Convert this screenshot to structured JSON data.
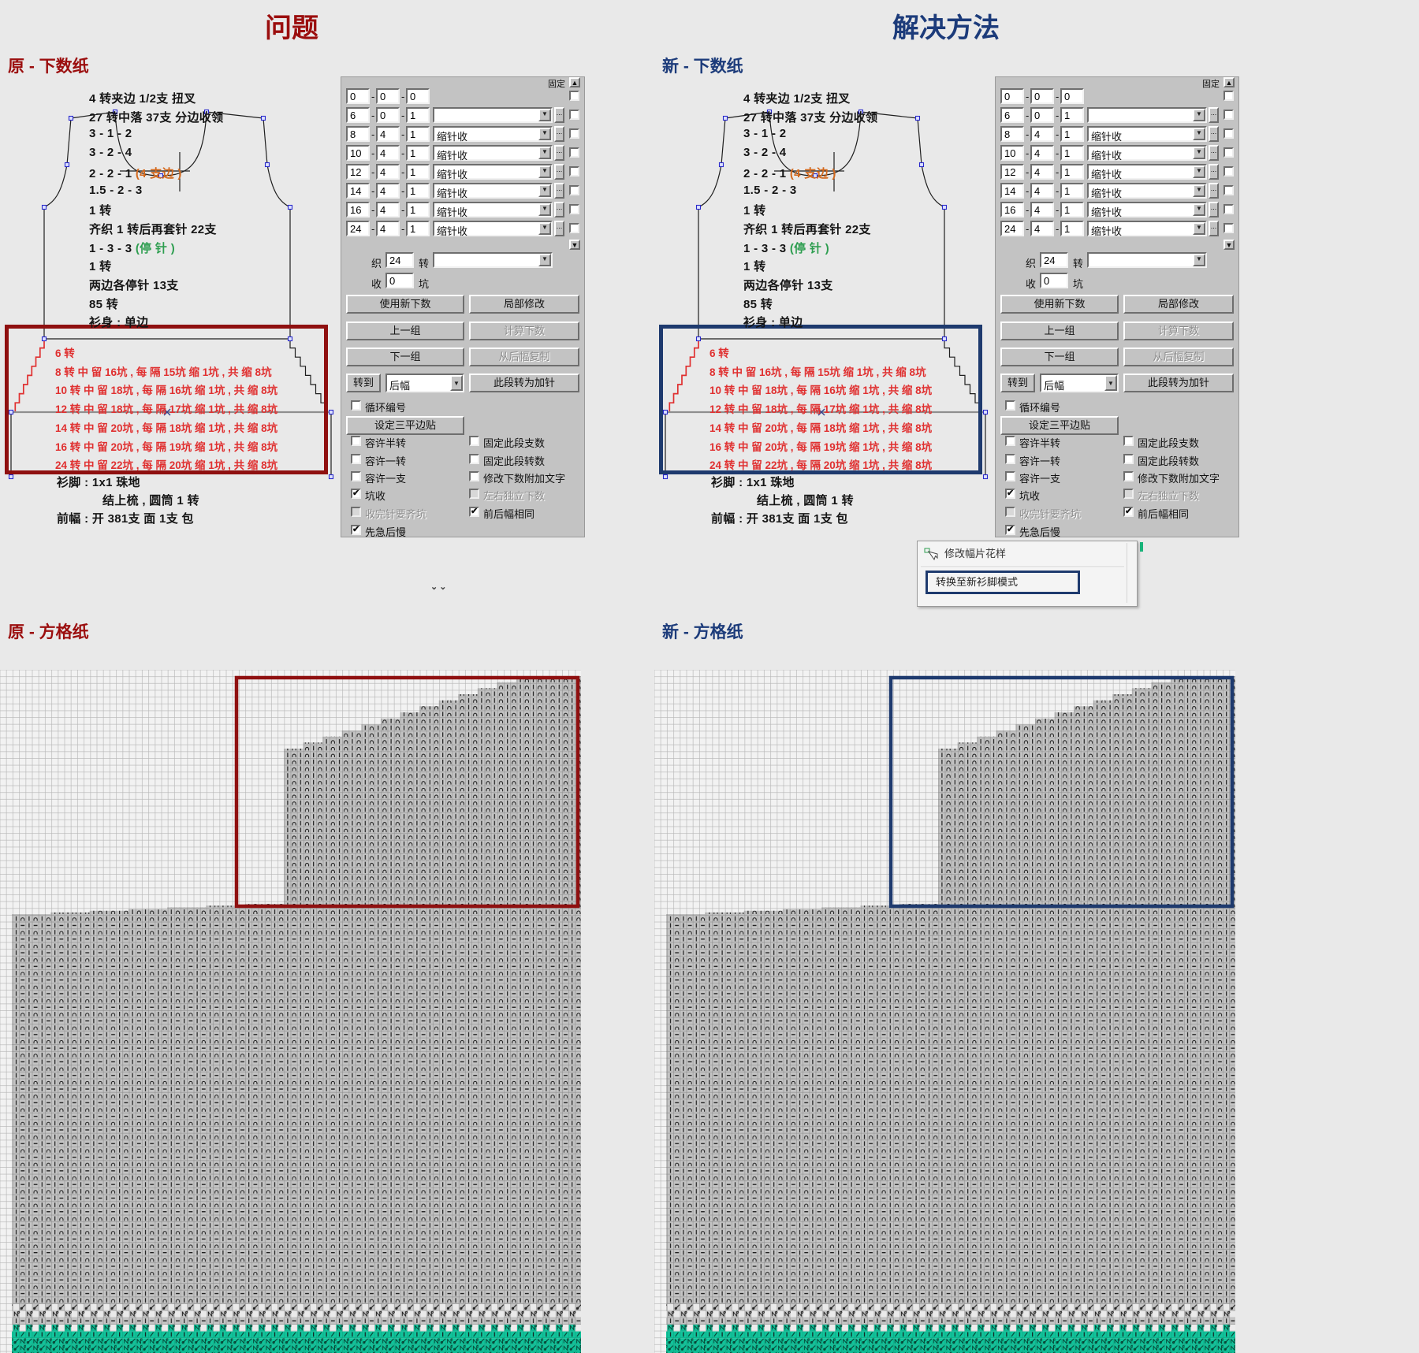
{
  "titles": {
    "problem": "问题",
    "solution": "解决方法"
  },
  "section_labels": {
    "left_top": "原 - 下数纸",
    "right_top": "新 - 下数纸",
    "left_grid": "原 - 方格纸",
    "right_grid": "新 - 方格纸"
  },
  "colors": {
    "problem_accent": "#9B0E0E",
    "solution_accent": "#1C3B7A",
    "red_text": "#E03030",
    "orange_text": "#D2691E",
    "green_text": "#2E9E50",
    "teal": "#12C39B",
    "panel_gray": "#C3C3C3",
    "box_red": "#8F1010",
    "box_blue": "#1E3A6E"
  },
  "schematic": {
    "top_lines": [
      [
        {
          "t": "4 转夹边 1/2支 扭叉"
        }
      ],
      [
        {
          "t": "27 转中落 37支 分边收领"
        }
      ],
      [
        {
          "t": "3 - 1 - 2"
        }
      ],
      [
        {
          "t": "3 - 2 - 4"
        }
      ],
      [
        {
          "t": "2 - 2 - 1      "
        },
        {
          "t": "(4 支边 )",
          "c": "o"
        }
      ],
      [
        {
          "t": "1.5 - 2 - 3"
        }
      ],
      [
        {
          "t": "1 转"
        }
      ],
      [
        {
          "t": "齐织 1 转后再套针 22支"
        }
      ],
      [
        {
          "t": "1 - 3 - 3 "
        },
        {
          "t": "(停 针 )",
          "c": "g"
        }
      ],
      [
        {
          "t": "1 转"
        }
      ],
      [
        {
          "t": "两边各停针 13支"
        }
      ],
      [
        {
          "t": "85 转"
        }
      ],
      [
        {
          "t": "衫身 : 单边"
        }
      ]
    ],
    "red_lines": [
      "6 转",
      "8 转 中 留 16坑 , 每 隔 15坑 缩 1坑 , 共 缩 8坑",
      "10 转 中 留 18坑 , 每 隔 16坑 缩 1坑 , 共 缩 8坑",
      "12 转 中 留 18坑 , 每 隔 17坑 缩 1坑 , 共 缩 8坑",
      "14 转 中 留 20坑 , 每 隔 18坑 缩 1坑 , 共 缩 8坑",
      "16 转 中 留 20坑 , 每 隔 19坑 缩 1坑 , 共 缩 8坑",
      "24 转 中 留 22坑 , 每 隔 20坑 缩 1坑 , 共 缩 8坑"
    ],
    "bottom_lines": [
      "衫脚 : 1x1 珠地",
      "结上梳 , 圆筒 1 转",
      "前幅 : 开 381支 面 1支 包"
    ]
  },
  "panel": {
    "fixed_label": "固定",
    "rows": [
      {
        "a": "0",
        "b": "0",
        "c": "0",
        "opt": null,
        "dots": false
      },
      {
        "a": "6",
        "b": "0",
        "c": "1",
        "opt": "",
        "dots": true
      },
      {
        "a": "8",
        "b": "4",
        "c": "1",
        "opt": "缩针收",
        "dots": true
      },
      {
        "a": "10",
        "b": "4",
        "c": "1",
        "opt": "缩针收",
        "dots": true
      },
      {
        "a": "12",
        "b": "4",
        "c": "1",
        "opt": "缩针收",
        "dots": true
      },
      {
        "a": "14",
        "b": "4",
        "c": "1",
        "opt": "缩针收",
        "dots": true
      },
      {
        "a": "16",
        "b": "4",
        "c": "1",
        "opt": "缩针收",
        "dots": true
      },
      {
        "a": "24",
        "b": "4",
        "c": "1",
        "opt": "缩针收",
        "dots": true
      }
    ],
    "weave_label": "织",
    "weave_value": "24",
    "weave_unit": "转",
    "dec_label": "收",
    "dec_value": "0",
    "dec_unit": "坑",
    "buttons": {
      "use_new": "使用新下数",
      "local_edit": "局部修改",
      "prev_group": "上一组",
      "calc": "计算下数",
      "next_group": "下一组",
      "copy_from_back": "从后幅复制",
      "goto": "转到",
      "goto_value": "后幅",
      "convert_add": "此段转为加针",
      "set_three_flat": "设定三平边贴"
    },
    "checks_left": [
      {
        "label": "循环编号",
        "state": "off"
      },
      {
        "label": "容许半转",
        "state": "off"
      },
      {
        "label": "容许一转",
        "state": "off"
      },
      {
        "label": "容许一支",
        "state": "off"
      },
      {
        "label": "坑收",
        "state": "on"
      },
      {
        "label": "收完针要齐坑",
        "state": "disabled"
      },
      {
        "label": "先急后慢",
        "state": "on"
      }
    ],
    "checks_right": [
      {
        "label": "固定此段支数",
        "state": "off"
      },
      {
        "label": "固定此段转数",
        "state": "off"
      },
      {
        "label": "修改下数附加文字",
        "state": "off"
      },
      {
        "label": "左右独立下数",
        "state": "disabled"
      },
      {
        "label": "前后幅相同",
        "state": "on"
      }
    ]
  },
  "popup": {
    "item1": "修改幅片花样",
    "item2": "转换至新衫脚模式"
  },
  "grid": {
    "description": "front-panel knit chart: plain-stitch upper block with shoulder staircase, patterned body, transfer rows and teal rib set-up rows at the bottom",
    "upper_symbol": "tuck-arch",
    "body_symbols": [
      "bar",
      "arch",
      "dash"
    ],
    "bottom_rows": [
      "transfer-row",
      "transfer-row-2",
      "rib-row",
      "teal-transfer-row",
      "teal-slash-row",
      "teal-dense-rows"
    ]
  }
}
